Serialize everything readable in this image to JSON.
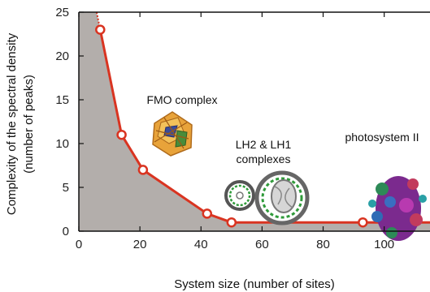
{
  "chart_data": {
    "type": "line",
    "xlabel": "System size (number of sites)",
    "ylabel_line1": "Complexity of the spectral density",
    "ylabel_line2": "(number of peaks)",
    "xlim": [
      0,
      115
    ],
    "ylim": [
      0,
      25
    ],
    "x_ticks": [
      0,
      20,
      40,
      60,
      80,
      100
    ],
    "y_ticks": [
      0,
      5,
      10,
      15,
      20,
      25
    ],
    "grid": false,
    "series": [
      {
        "points": [
          {
            "x": 7,
            "y": 23
          },
          {
            "x": 14,
            "y": 11
          },
          {
            "x": 21,
            "y": 7
          },
          {
            "x": 42,
            "y": 2
          },
          {
            "x": 50,
            "y": 1
          },
          {
            "x": 93,
            "y": 1
          },
          {
            "x": 100,
            "y": 1
          }
        ]
      }
    ],
    "shaded_region_color": "#b3aeab",
    "line_color": "#d93421",
    "annotations": {
      "fmo": "FMO complex",
      "lh_line1": "LH2 & LH1",
      "lh_line2": "complexes",
      "psii": "photosystem II"
    }
  }
}
